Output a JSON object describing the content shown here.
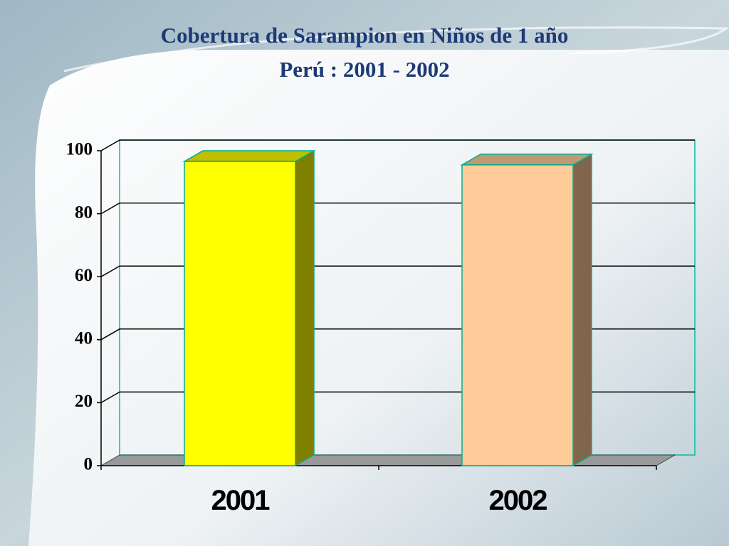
{
  "chart_data": {
    "type": "bar3d",
    "title": "Cobertura de Sarampion en Niños de 1 año",
    "subtitle": "Perú : 2001 - 2002",
    "categories": [
      "2001",
      "2002"
    ],
    "values": [
      96.6,
      95.5
    ],
    "colors": [
      "#ffff00",
      "#ffcc99"
    ],
    "ylim": [
      0,
      100
    ],
    "yticks": [
      0,
      20,
      40,
      60,
      80,
      100
    ],
    "grid": true
  }
}
